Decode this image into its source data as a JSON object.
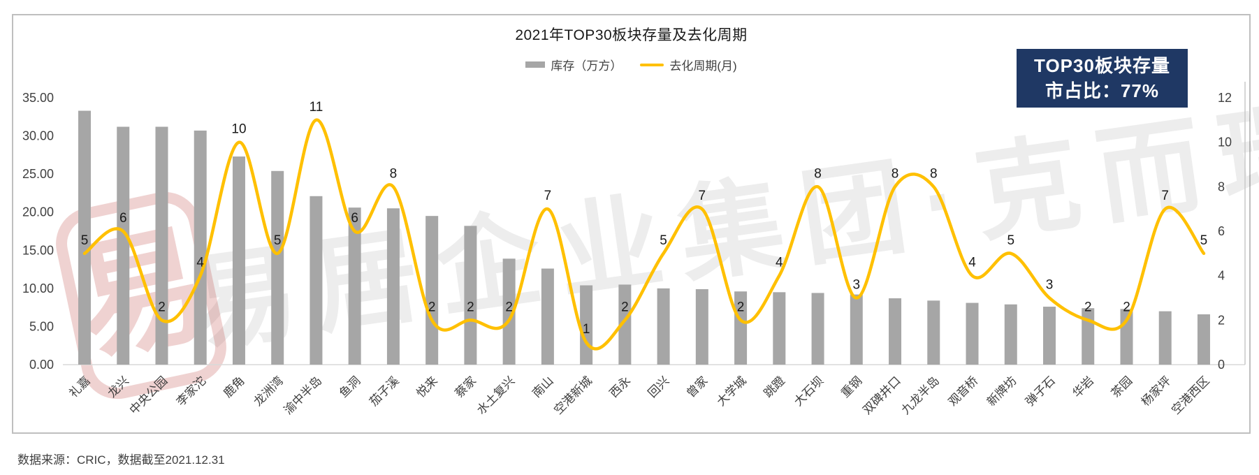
{
  "title": "2021年TOP30板块存量及去化周期",
  "badge": {
    "line1": "TOP30板块存量",
    "line2": "市占比：77%",
    "bg_color": "#1F3864",
    "text_color": "#FFFFFF"
  },
  "source_note": "数据来源：CRIC，数据截至2021.12.31",
  "watermark": {
    "text": "易居企业集团·克而瑞",
    "stamp_glyph": "易"
  },
  "colors": {
    "bar": "#A6A6A6",
    "line": "#FFC000",
    "axis_text": "#404040",
    "data_label": "#1a1a1a",
    "baseline": "#D9D9D9",
    "right_axis_line": "#C9C9C9",
    "frame_border": "#BFBFBF"
  },
  "chart_data": {
    "type": "bar",
    "subtype": "combo-bar-line-dual-axis",
    "title": "2021年TOP30板块存量及去化周期",
    "categories": [
      "礼嘉",
      "龙兴",
      "中央公园",
      "李家沱",
      "鹿角",
      "龙洲湾",
      "渝中半岛",
      "鱼洞",
      "茄子溪",
      "悦来",
      "蔡家",
      "水土复兴",
      "南山",
      "空港新城",
      "西永",
      "回兴",
      "曾家",
      "大学城",
      "跳蹬",
      "大石坝",
      "重钢",
      "双碑井口",
      "九龙半岛",
      "观音桥",
      "新牌坊",
      "弹子石",
      "华岩",
      "茶园",
      "杨家坪",
      "空港西区"
    ],
    "series": [
      {
        "name": "库存（万方）",
        "type": "bar",
        "axis": "left",
        "color": "#A6A6A6",
        "values": [
          33.3,
          31.2,
          31.2,
          30.7,
          27.3,
          25.4,
          22.1,
          20.6,
          20.5,
          19.5,
          18.2,
          13.9,
          12.6,
          10.4,
          10.5,
          10.0,
          9.9,
          9.6,
          9.5,
          9.4,
          9.2,
          8.7,
          8.4,
          8.1,
          7.9,
          7.6,
          7.4,
          7.3,
          7.0,
          6.6
        ]
      },
      {
        "name": "去化周期(月)",
        "type": "line",
        "axis": "right",
        "color": "#FFC000",
        "values": [
          5,
          6,
          2,
          4,
          10,
          5,
          11,
          6,
          8,
          2,
          2,
          2,
          7,
          1,
          2,
          5,
          7,
          2,
          4,
          8,
          3,
          8,
          8,
          4,
          5,
          3,
          2,
          2,
          7,
          5
        ],
        "data_labels": [
          "5",
          "6",
          "2",
          "4",
          "10",
          "5",
          "11",
          "6",
          "8",
          "2",
          "2",
          "2",
          "7",
          "1",
          "2",
          "5",
          "7",
          "2",
          "4",
          "8",
          "3",
          "8",
          "8",
          "4",
          "5",
          "3",
          "2",
          "2",
          "7",
          "5"
        ]
      }
    ],
    "left_axis": {
      "tick_labels": [
        "35.00",
        "30.00",
        "25.00",
        "20.00",
        "15.00",
        "10.00",
        "5.00",
        "0.00"
      ],
      "tick_values": [
        35,
        30,
        25,
        20,
        15,
        10,
        5,
        0
      ],
      "min": 0,
      "max": 35
    },
    "right_axis": {
      "tick_labels": [
        "12",
        "10",
        "8",
        "6",
        "4",
        "2",
        "0"
      ],
      "tick_values": [
        12,
        10,
        8,
        6,
        4,
        2,
        0
      ],
      "min": 0,
      "max": 12
    },
    "grid": false,
    "legend_position": "top-center",
    "x_label_rotation": -45
  }
}
